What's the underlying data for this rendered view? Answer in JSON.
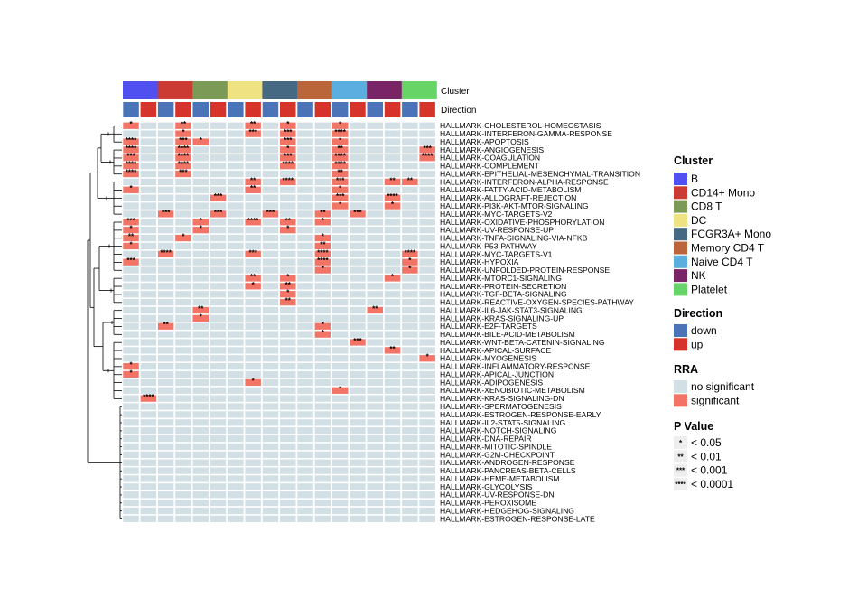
{
  "chart_data": {
    "type": "heatmap",
    "title": "",
    "annotation_labels": {
      "cluster": "Cluster",
      "direction": "Direction"
    },
    "clusters": [
      {
        "name": "B",
        "color": "#5050f0"
      },
      {
        "name": "CD14+ Mono",
        "color": "#cc3b33"
      },
      {
        "name": "CD8 T",
        "color": "#7a9a55"
      },
      {
        "name": "DC",
        "color": "#efe283"
      },
      {
        "name": "FCGR3A+ Mono",
        "color": "#456883"
      },
      {
        "name": "Memory CD4 T",
        "color": "#bb663a"
      },
      {
        "name": "Naive CD4 T",
        "color": "#5aaee0"
      },
      {
        "name": "NK",
        "color": "#7a2468"
      },
      {
        "name": "Platelet",
        "color": "#66d466"
      }
    ],
    "directions": [
      {
        "name": "down",
        "color": "#4a73b8"
      },
      {
        "name": "up",
        "color": "#d6342b"
      }
    ],
    "columns": [
      {
        "cluster": 0,
        "direction": 0
      },
      {
        "cluster": 0,
        "direction": 1
      },
      {
        "cluster": 1,
        "direction": 0
      },
      {
        "cluster": 1,
        "direction": 1
      },
      {
        "cluster": 2,
        "direction": 0
      },
      {
        "cluster": 2,
        "direction": 1
      },
      {
        "cluster": 3,
        "direction": 0
      },
      {
        "cluster": 3,
        "direction": 1
      },
      {
        "cluster": 4,
        "direction": 0
      },
      {
        "cluster": 4,
        "direction": 1
      },
      {
        "cluster": 5,
        "direction": 0
      },
      {
        "cluster": 5,
        "direction": 1
      },
      {
        "cluster": 6,
        "direction": 0
      },
      {
        "cluster": 6,
        "direction": 1
      },
      {
        "cluster": 7,
        "direction": 0
      },
      {
        "cluster": 7,
        "direction": 1
      },
      {
        "cluster": 8,
        "direction": 0
      },
      {
        "cluster": 8,
        "direction": 1
      }
    ],
    "rra_colors": {
      "no_significant": "#d2e0e6",
      "significant": "#f17466"
    },
    "rows": [
      "HALLMARK-CHOLESTEROL-HOMEOSTASIS",
      "HALLMARK-INTERFERON-GAMMA-RESPONSE",
      "HALLMARK-APOPTOSIS",
      "HALLMARK-ANGIOGENESIS",
      "HALLMARK-COAGULATION",
      "HALLMARK-COMPLEMENT",
      "HALLMARK-EPITHELIAL-MESENCHYMAL-TRANSITION",
      "HALLMARK-INTERFERON-ALPHA-RESPONSE",
      "HALLMARK-FATTY-ACID-METABOLISM",
      "HALLMARK-ALLOGRAFT-REJECTION",
      "HALLMARK-PI3K-AKT-MTOR-SIGNALING",
      "HALLMARK-MYC-TARGETS-V2",
      "HALLMARK-OXIDATIVE-PHOSPHORYLATION",
      "HALLMARK-UV-RESPONSE-UP",
      "HALLMARK-TNFA-SIGNALING-VIA-NFKB",
      "HALLMARK-P53-PATHWAY",
      "HALLMARK-MYC-TARGETS-V1",
      "HALLMARK-HYPOXIA",
      "HALLMARK-UNFOLDED-PROTEIN-RESPONSE",
      "HALLMARK-MTORC1-SIGNALING",
      "HALLMARK-PROTEIN-SECRETION",
      "HALLMARK-TGF-BETA-SIGNALING",
      "HALLMARK-REACTIVE-OXYGEN-SPECIES-PATHWAY",
      "HALLMARK-IL6-JAK-STAT3-SIGNALING",
      "HALLMARK-KRAS-SIGNALING-UP",
      "HALLMARK-E2F-TARGETS",
      "HALLMARK-BILE-ACID-METABOLISM",
      "HALLMARK-WNT-BETA-CATENIN-SIGNALING",
      "HALLMARK-APICAL-SURFACE",
      "HALLMARK-MYOGENESIS",
      "HALLMARK-INFLAMMATORY-RESPONSE",
      "HALLMARK-APICAL-JUNCTION",
      "HALLMARK-ADIPOGENESIS",
      "HALLMARK-XENOBIOTIC-METABOLISM",
      "HALLMARK-KRAS-SIGNALING-DN",
      "HALLMARK-SPERMATOGENESIS",
      "HALLMARK-ESTROGEN-RESPONSE-EARLY",
      "HALLMARK-IL2-STAT5-SIGNALING",
      "HALLMARK-NOTCH-SIGNALING",
      "HALLMARK-DNA-REPAIR",
      "HALLMARK-MITOTIC-SPINDLE",
      "HALLMARK-G2M-CHECKPOINT",
      "HALLMARK-ANDROGEN-RESPONSE",
      "HALLMARK-PANCREAS-BETA-CELLS",
      "HALLMARK-HEME-METABOLISM",
      "HALLMARK-GLYCOLYSIS",
      "HALLMARK-UV-RESPONSE-DN",
      "HALLMARK-PEROXISOME",
      "HALLMARK-HEDGEHOG-SIGNALING",
      "HALLMARK-ESTROGEN-RESPONSE-LATE"
    ],
    "significant_cells": [
      {
        "row": 0,
        "col": 0,
        "stars": "*"
      },
      {
        "row": 0,
        "col": 3,
        "stars": "**"
      },
      {
        "row": 0,
        "col": 7,
        "stars": "**"
      },
      {
        "row": 0,
        "col": 9,
        "stars": "*"
      },
      {
        "row": 0,
        "col": 12,
        "stars": "*"
      },
      {
        "row": 1,
        "col": 3,
        "stars": "*"
      },
      {
        "row": 1,
        "col": 7,
        "stars": "***"
      },
      {
        "row": 1,
        "col": 9,
        "stars": "***"
      },
      {
        "row": 1,
        "col": 12,
        "stars": "****"
      },
      {
        "row": 2,
        "col": 0,
        "stars": "****"
      },
      {
        "row": 2,
        "col": 3,
        "stars": "***"
      },
      {
        "row": 2,
        "col": 4,
        "stars": "*"
      },
      {
        "row": 2,
        "col": 9,
        "stars": "***"
      },
      {
        "row": 2,
        "col": 12,
        "stars": "*"
      },
      {
        "row": 3,
        "col": 0,
        "stars": "****"
      },
      {
        "row": 3,
        "col": 3,
        "stars": "****"
      },
      {
        "row": 3,
        "col": 9,
        "stars": "*"
      },
      {
        "row": 3,
        "col": 12,
        "stars": "**"
      },
      {
        "row": 3,
        "col": 17,
        "stars": "***"
      },
      {
        "row": 4,
        "col": 0,
        "stars": "***"
      },
      {
        "row": 4,
        "col": 3,
        "stars": "****"
      },
      {
        "row": 4,
        "col": 9,
        "stars": "***"
      },
      {
        "row": 4,
        "col": 12,
        "stars": "****"
      },
      {
        "row": 4,
        "col": 17,
        "stars": "****"
      },
      {
        "row": 5,
        "col": 0,
        "stars": "****"
      },
      {
        "row": 5,
        "col": 3,
        "stars": "****"
      },
      {
        "row": 5,
        "col": 9,
        "stars": "****"
      },
      {
        "row": 5,
        "col": 12,
        "stars": "****"
      },
      {
        "row": 6,
        "col": 0,
        "stars": "****"
      },
      {
        "row": 6,
        "col": 3,
        "stars": "***"
      },
      {
        "row": 6,
        "col": 12,
        "stars": "**"
      },
      {
        "row": 7,
        "col": 7,
        "stars": "**"
      },
      {
        "row": 7,
        "col": 9,
        "stars": "****"
      },
      {
        "row": 7,
        "col": 12,
        "stars": "***"
      },
      {
        "row": 7,
        "col": 15,
        "stars": "**"
      },
      {
        "row": 7,
        "col": 16,
        "stars": "**"
      },
      {
        "row": 8,
        "col": 0,
        "stars": "*"
      },
      {
        "row": 8,
        "col": 7,
        "stars": "**"
      },
      {
        "row": 8,
        "col": 12,
        "stars": "*"
      },
      {
        "row": 9,
        "col": 5,
        "stars": "***"
      },
      {
        "row": 9,
        "col": 12,
        "stars": "***"
      },
      {
        "row": 9,
        "col": 15,
        "stars": "****"
      },
      {
        "row": 10,
        "col": 12,
        "stars": "*"
      },
      {
        "row": 10,
        "col": 15,
        "stars": "*"
      },
      {
        "row": 11,
        "col": 2,
        "stars": "***"
      },
      {
        "row": 11,
        "col": 5,
        "stars": "***"
      },
      {
        "row": 11,
        "col": 8,
        "stars": "***"
      },
      {
        "row": 11,
        "col": 11,
        "stars": "**"
      },
      {
        "row": 11,
        "col": 13,
        "stars": "***"
      },
      {
        "row": 12,
        "col": 0,
        "stars": "***"
      },
      {
        "row": 12,
        "col": 4,
        "stars": "*"
      },
      {
        "row": 12,
        "col": 7,
        "stars": "****"
      },
      {
        "row": 12,
        "col": 9,
        "stars": "**"
      },
      {
        "row": 12,
        "col": 11,
        "stars": "*"
      },
      {
        "row": 13,
        "col": 0,
        "stars": "*"
      },
      {
        "row": 13,
        "col": 4,
        "stars": "*"
      },
      {
        "row": 13,
        "col": 9,
        "stars": "*"
      },
      {
        "row": 14,
        "col": 0,
        "stars": "**"
      },
      {
        "row": 14,
        "col": 3,
        "stars": "*"
      },
      {
        "row": 14,
        "col": 11,
        "stars": "*"
      },
      {
        "row": 15,
        "col": 0,
        "stars": "*"
      },
      {
        "row": 15,
        "col": 11,
        "stars": "**"
      },
      {
        "row": 16,
        "col": 2,
        "stars": "****"
      },
      {
        "row": 16,
        "col": 7,
        "stars": "***"
      },
      {
        "row": 16,
        "col": 11,
        "stars": "****"
      },
      {
        "row": 16,
        "col": 16,
        "stars": "****"
      },
      {
        "row": 17,
        "col": 0,
        "stars": "***"
      },
      {
        "row": 17,
        "col": 11,
        "stars": "****"
      },
      {
        "row": 17,
        "col": 16,
        "stars": "*"
      },
      {
        "row": 18,
        "col": 11,
        "stars": "*"
      },
      {
        "row": 18,
        "col": 16,
        "stars": "*"
      },
      {
        "row": 19,
        "col": 7,
        "stars": "**"
      },
      {
        "row": 19,
        "col": 9,
        "stars": "*"
      },
      {
        "row": 19,
        "col": 15,
        "stars": "*"
      },
      {
        "row": 20,
        "col": 7,
        "stars": "*"
      },
      {
        "row": 20,
        "col": 9,
        "stars": "**"
      },
      {
        "row": 21,
        "col": 9,
        "stars": "*"
      },
      {
        "row": 22,
        "col": 9,
        "stars": "**"
      },
      {
        "row": 23,
        "col": 4,
        "stars": "**"
      },
      {
        "row": 23,
        "col": 14,
        "stars": "**"
      },
      {
        "row": 24,
        "col": 4,
        "stars": "*"
      },
      {
        "row": 25,
        "col": 2,
        "stars": "**"
      },
      {
        "row": 25,
        "col": 11,
        "stars": "*"
      },
      {
        "row": 26,
        "col": 11,
        "stars": "*"
      },
      {
        "row": 27,
        "col": 13,
        "stars": "***"
      },
      {
        "row": 28,
        "col": 15,
        "stars": "**"
      },
      {
        "row": 29,
        "col": 17,
        "stars": "*"
      },
      {
        "row": 30,
        "col": 0,
        "stars": "*"
      },
      {
        "row": 31,
        "col": 0,
        "stars": "*"
      },
      {
        "row": 32,
        "col": 7,
        "stars": "*"
      },
      {
        "row": 33,
        "col": 12,
        "stars": "*"
      },
      {
        "row": 34,
        "col": 1,
        "stars": "****"
      }
    ],
    "legend": {
      "cluster_title": "Cluster",
      "direction_title": "Direction",
      "rra_title": "RRA",
      "rra_items": [
        {
          "label": "no significant",
          "color": "#d2e0e6"
        },
        {
          "label": "significant",
          "color": "#f17466"
        }
      ],
      "pvalue_title": "P Value",
      "pvalue_items": [
        {
          "symbol": "*",
          "label": "< 0.05"
        },
        {
          "symbol": "**",
          "label": "< 0.01"
        },
        {
          "symbol": "***",
          "label": "< 0.001"
        },
        {
          "symbol": "****",
          "label": "< 0.0001"
        }
      ]
    }
  }
}
